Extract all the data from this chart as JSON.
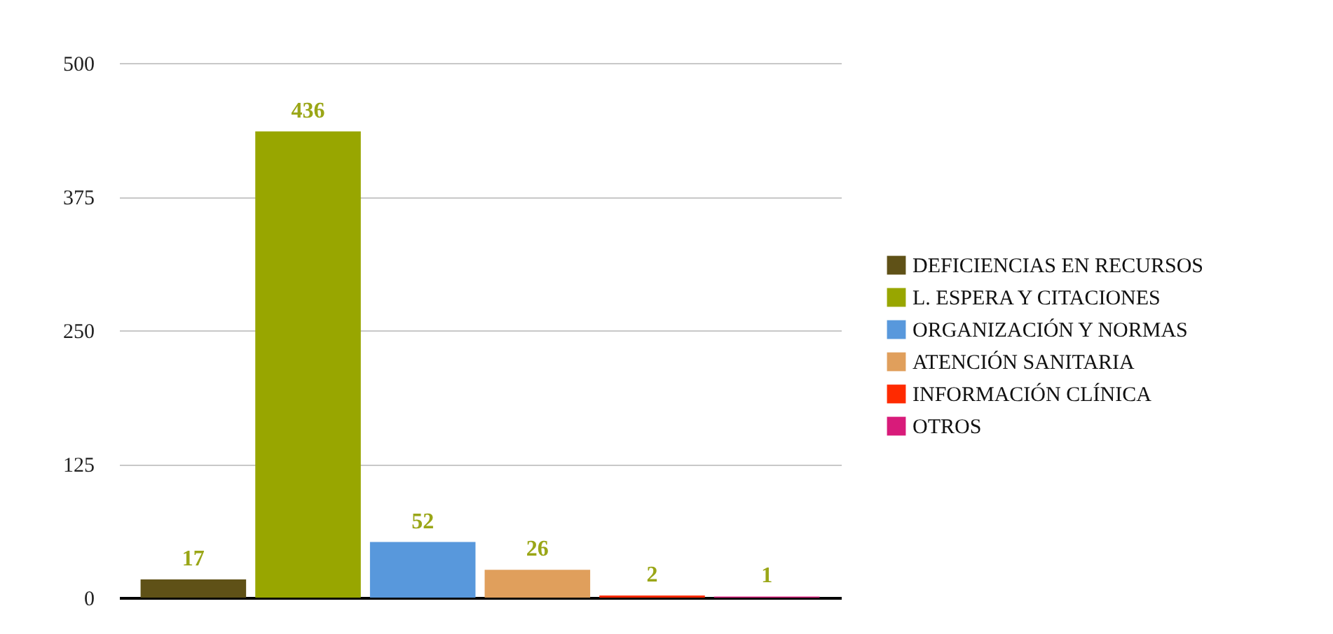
{
  "chart_data": {
    "type": "bar",
    "categories": [
      null
    ],
    "series": [
      {
        "name": "DEFICIENCIAS EN RECURSOS",
        "color": "#5f5117",
        "values": [
          17
        ]
      },
      {
        "name": "L. ESPERA Y CITACIONES",
        "color": "#98a600",
        "values": [
          436
        ]
      },
      {
        "name": "ORGANIZACIÓN Y NORMAS",
        "color": "#5898dc",
        "values": [
          52
        ]
      },
      {
        "name": "ATENCIÓN SANITARIA",
        "color": "#e09f5c",
        "values": [
          26
        ]
      },
      {
        "name": "INFORMACIÓN CLÍNICA",
        "color": "#ff2a00",
        "values": [
          2
        ]
      },
      {
        "name": "OTROS",
        "color": "#d81b7a",
        "values": [
          1
        ]
      }
    ],
    "ylim": [
      0,
      500
    ],
    "yticks": [
      0,
      125,
      250,
      375,
      500
    ],
    "grid": "y",
    "legend": "right",
    "tick_labels": "y",
    "data_labels": true
  }
}
